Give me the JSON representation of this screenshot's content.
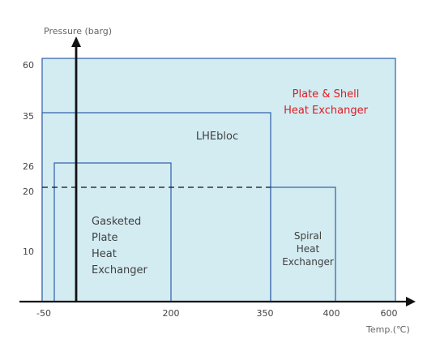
{
  "axes": {
    "y_title": "Pressure (barg)",
    "x_title": "Temp.(℃)",
    "y_ticks": [
      "60",
      "35",
      "26",
      "20",
      "10"
    ],
    "x_ticks": [
      "-50",
      "200",
      "350",
      "400",
      "600"
    ]
  },
  "regions": {
    "plate_shell": {
      "line1": "Plate & Shell",
      "line2": "Heat Exchanger",
      "max_pressure_barg": 60,
      "max_temp_c": 600
    },
    "lhebloc": {
      "label": "LHEbloc",
      "max_pressure_barg": 35,
      "max_temp_c": 350
    },
    "gasketed": {
      "line1": "Gasketed",
      "line2": "Plate",
      "line3": "Heat",
      "line4": "Exchanger",
      "max_pressure_barg": 26,
      "max_temp_c": 200
    },
    "spiral": {
      "line1": "Spiral",
      "line2": "Heat",
      "line3": "Exchanger",
      "max_pressure_barg": 20,
      "max_temp_c": 400
    }
  },
  "reference_line": {
    "pressure_barg": 20,
    "style": "dashed"
  },
  "colors": {
    "fill": "#d3ecf2",
    "border": "#2e5da8",
    "axis": "#111111",
    "highlight_text": "#e0191f"
  }
}
